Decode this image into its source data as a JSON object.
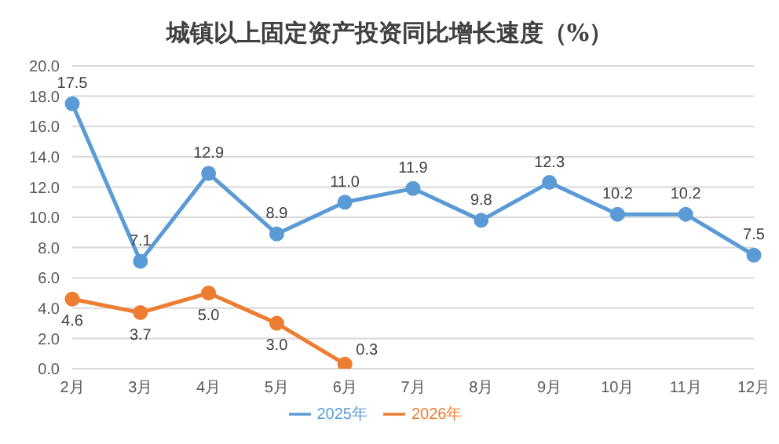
{
  "chart_data": {
    "type": "line",
    "title": "城镇以上固定资产投资同比增长速度（%）",
    "categories": [
      "2月",
      "3月",
      "4月",
      "5月",
      "6月",
      "7月",
      "8月",
      "9月",
      "10月",
      "11月",
      "12月"
    ],
    "series": [
      {
        "name": "2025年",
        "color": "#5b9bd5",
        "values": [
          17.5,
          7.1,
          12.9,
          8.9,
          11.0,
          11.9,
          9.8,
          12.3,
          10.2,
          10.2,
          7.5
        ],
        "value_labels": [
          "17.5",
          "7.1",
          "12.9",
          "8.9",
          "11.0",
          "11.9",
          "9.8",
          "12.3",
          "10.2",
          "10.2",
          "7.5"
        ]
      },
      {
        "name": "2026年",
        "color": "#ed7d31",
        "values": [
          4.6,
          3.7,
          5.0,
          3.0,
          0.3,
          null,
          null,
          null,
          null,
          null,
          null
        ],
        "value_labels": [
          "4.6",
          "3.7",
          "5.0",
          "3.0",
          "0.3",
          null,
          null,
          null,
          null,
          null,
          null
        ]
      }
    ],
    "ylim": [
      0,
      20
    ],
    "yticks": [
      {
        "value": 0,
        "label": "0.0"
      },
      {
        "value": 2,
        "label": "2.0"
      },
      {
        "value": 4,
        "label": "4.0"
      },
      {
        "value": 6,
        "label": "6.0"
      },
      {
        "value": 8,
        "label": "8.0"
      },
      {
        "value": 10,
        "label": "10.0"
      },
      {
        "value": 12,
        "label": "12.0"
      },
      {
        "value": 14,
        "label": "14.0"
      },
      {
        "value": 16,
        "label": "16.0"
      },
      {
        "value": 18,
        "label": "18.0"
      },
      {
        "value": 20,
        "label": "20.0"
      }
    ],
    "grid": "y",
    "legend": "bottom",
    "marker": "circle",
    "line_style": "solid"
  }
}
